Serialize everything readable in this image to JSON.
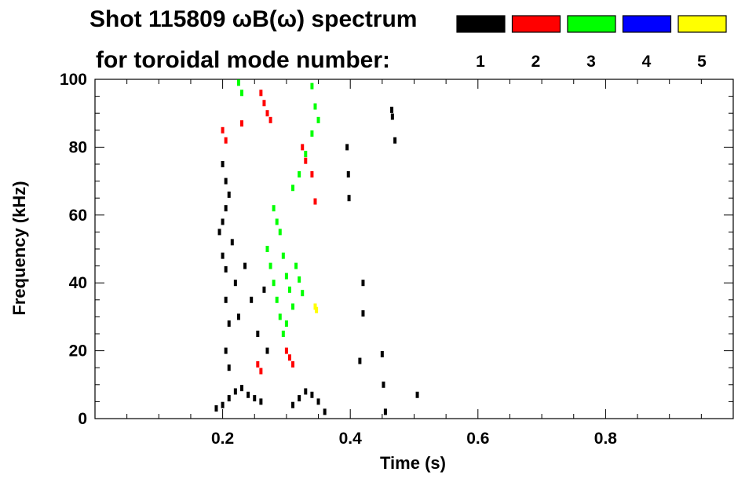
{
  "chart_data": {
    "type": "scatter",
    "title_line1": "Shot 115809 ωB(ω) spectrum",
    "title_line2": "for toroidal mode number:",
    "xlabel": "Time (s)",
    "ylabel": "Frequency (kHz)",
    "xlim": [
      0,
      1.0
    ],
    "ylim": [
      0,
      100
    ],
    "x_ticks": [
      {
        "value": 0.2,
        "label": "0.2"
      },
      {
        "value": 0.4,
        "label": "0.4"
      },
      {
        "value": 0.6,
        "label": "0.6"
      },
      {
        "value": 0.8,
        "label": "0.8"
      }
    ],
    "y_ticks": [
      {
        "value": 0,
        "label": "0"
      },
      {
        "value": 20,
        "label": "20"
      },
      {
        "value": 40,
        "label": "40"
      },
      {
        "value": 60,
        "label": "60"
      },
      {
        "value": 80,
        "label": "80"
      },
      {
        "value": 100,
        "label": "100"
      }
    ],
    "legend": [
      {
        "mode": "1",
        "color": "#000000"
      },
      {
        "mode": "2",
        "color": "#ff0000"
      },
      {
        "mode": "3",
        "color": "#00ff00"
      },
      {
        "mode": "4",
        "color": "#0000ff"
      },
      {
        "mode": "5",
        "color": "#ffff00"
      }
    ],
    "series": [
      {
        "mode": "1",
        "color": "#000000",
        "points": [
          [
            0.19,
            3
          ],
          [
            0.2,
            4
          ],
          [
            0.21,
            6
          ],
          [
            0.22,
            8
          ],
          [
            0.23,
            9
          ],
          [
            0.24,
            7
          ],
          [
            0.25,
            6
          ],
          [
            0.26,
            5
          ],
          [
            0.31,
            4
          ],
          [
            0.32,
            6
          ],
          [
            0.33,
            8
          ],
          [
            0.34,
            7
          ],
          [
            0.35,
            5
          ],
          [
            0.36,
            2
          ],
          [
            0.195,
            55
          ],
          [
            0.2,
            58
          ],
          [
            0.205,
            62
          ],
          [
            0.21,
            66
          ],
          [
            0.215,
            52
          ],
          [
            0.2,
            48
          ],
          [
            0.205,
            44
          ],
          [
            0.205,
            35
          ],
          [
            0.21,
            28
          ],
          [
            0.205,
            20
          ],
          [
            0.21,
            15
          ],
          [
            0.2,
            75
          ],
          [
            0.205,
            70
          ],
          [
            0.22,
            40
          ],
          [
            0.225,
            30
          ],
          [
            0.235,
            45
          ],
          [
            0.245,
            35
          ],
          [
            0.255,
            25
          ],
          [
            0.265,
            38
          ],
          [
            0.27,
            20
          ],
          [
            0.395,
            80
          ],
          [
            0.397,
            72
          ],
          [
            0.398,
            65
          ],
          [
            0.42,
            40
          ],
          [
            0.42,
            31
          ],
          [
            0.415,
            17
          ],
          [
            0.45,
            19
          ],
          [
            0.452,
            10
          ],
          [
            0.455,
            2
          ],
          [
            0.465,
            91
          ],
          [
            0.466,
            89
          ],
          [
            0.47,
            82
          ],
          [
            0.505,
            7
          ]
        ]
      },
      {
        "mode": "2",
        "color": "#ff0000",
        "points": [
          [
            0.2,
            85
          ],
          [
            0.205,
            82
          ],
          [
            0.26,
            96
          ],
          [
            0.265,
            93
          ],
          [
            0.27,
            90
          ],
          [
            0.275,
            88
          ],
          [
            0.255,
            16
          ],
          [
            0.26,
            14
          ],
          [
            0.3,
            20
          ],
          [
            0.305,
            18
          ],
          [
            0.31,
            16
          ],
          [
            0.325,
            80
          ],
          [
            0.33,
            76
          ],
          [
            0.34,
            72
          ],
          [
            0.345,
            64
          ],
          [
            0.23,
            87
          ]
        ]
      },
      {
        "mode": "3",
        "color": "#00ff00",
        "points": [
          [
            0.27,
            50
          ],
          [
            0.275,
            45
          ],
          [
            0.28,
            40
          ],
          [
            0.285,
            35
          ],
          [
            0.29,
            55
          ],
          [
            0.295,
            48
          ],
          [
            0.3,
            42
          ],
          [
            0.305,
            38
          ],
          [
            0.31,
            33
          ],
          [
            0.315,
            45
          ],
          [
            0.32,
            41
          ],
          [
            0.325,
            37
          ],
          [
            0.28,
            62
          ],
          [
            0.285,
            58
          ],
          [
            0.29,
            30
          ],
          [
            0.295,
            25
          ],
          [
            0.3,
            28
          ],
          [
            0.31,
            68
          ],
          [
            0.32,
            72
          ],
          [
            0.33,
            78
          ],
          [
            0.34,
            84
          ],
          [
            0.34,
            98
          ],
          [
            0.345,
            92
          ],
          [
            0.35,
            88
          ],
          [
            0.225,
            99
          ],
          [
            0.23,
            96
          ]
        ]
      },
      {
        "mode": "4",
        "color": "#0000ff",
        "points": []
      },
      {
        "mode": "5",
        "color": "#ffff00",
        "points": [
          [
            0.345,
            33
          ],
          [
            0.347,
            32
          ]
        ]
      }
    ]
  }
}
